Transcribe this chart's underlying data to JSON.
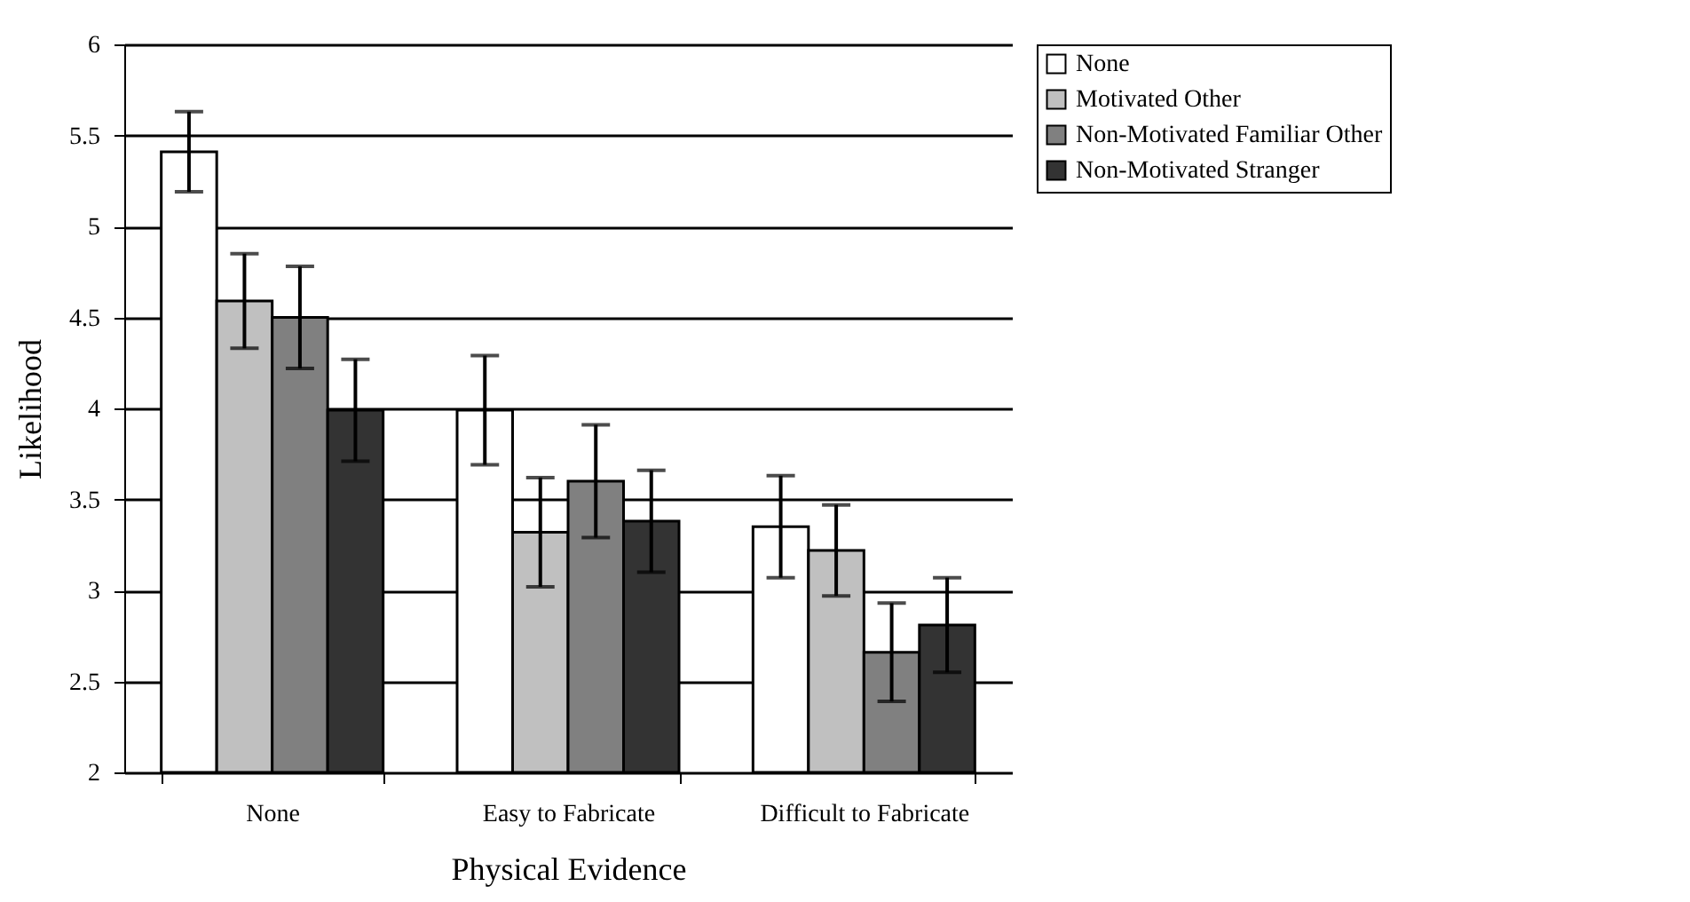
{
  "chart_data": {
    "type": "bar",
    "xlabel": "Physical Evidence",
    "ylabel": "Likelihood",
    "categories": [
      "None",
      "Easy to Fabricate",
      "Difficult to Fabricate"
    ],
    "series": [
      {
        "name": "None",
        "color": "#ffffff",
        "values": [
          5.41,
          3.99,
          3.35
        ],
        "errors": [
          0.22,
          0.3,
          0.28
        ]
      },
      {
        "name": "Motivated Other",
        "color": "#c0c0c0",
        "values": [
          4.59,
          3.32,
          3.22
        ],
        "errors": [
          0.26,
          0.3,
          0.25
        ]
      },
      {
        "name": "Non-Motivated Familiar Other",
        "color": "#808080",
        "values": [
          4.5,
          3.6,
          2.66
        ],
        "errors": [
          0.28,
          0.31,
          0.27
        ]
      },
      {
        "name": "Non-Motivated Stranger",
        "color": "#333333",
        "values": [
          3.99,
          3.38,
          2.81
        ],
        "errors": [
          0.28,
          0.28,
          0.26
        ]
      }
    ],
    "ylim": [
      2,
      6
    ],
    "yticks": [
      {
        "value": 2,
        "label": "2"
      },
      2.5,
      {
        "value": 3,
        "label": "3"
      },
      3.5,
      {
        "value": 4,
        "label": "4"
      },
      4.5,
      {
        "value": 5,
        "label": "5"
      },
      5.5,
      {
        "value": 6,
        "label": "6"
      }
    ],
    "grid": "y",
    "legend": "right"
  }
}
